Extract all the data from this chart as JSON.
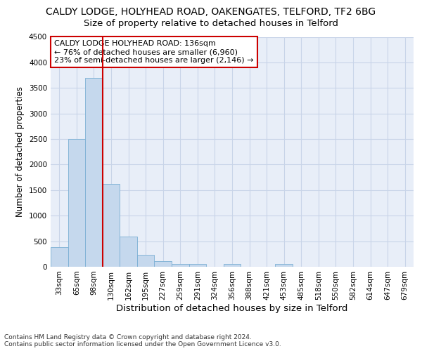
{
  "title1": "CALDY LODGE, HOLYHEAD ROAD, OAKENGATES, TELFORD, TF2 6BG",
  "title2": "Size of property relative to detached houses in Telford",
  "xlabel": "Distribution of detached houses by size in Telford",
  "ylabel": "Number of detached properties",
  "categories": [
    "33sqm",
    "65sqm",
    "98sqm",
    "130sqm",
    "162sqm",
    "195sqm",
    "227sqm",
    "259sqm",
    "291sqm",
    "324sqm",
    "356sqm",
    "388sqm",
    "421sqm",
    "453sqm",
    "485sqm",
    "518sqm",
    "550sqm",
    "582sqm",
    "614sqm",
    "647sqm",
    "679sqm"
  ],
  "values": [
    380,
    2500,
    3700,
    1625,
    590,
    240,
    105,
    60,
    55,
    0,
    60,
    0,
    0,
    55,
    0,
    0,
    0,
    0,
    0,
    0,
    0
  ],
  "bar_color": "#c5d8ed",
  "bar_edge_color": "#7aafd4",
  "grid_color": "#c8d4e8",
  "bg_color": "#e8eef8",
  "vline_color": "#cc0000",
  "vline_pos": 2.5,
  "annotation_line1": "CALDY LODGE HOLYHEAD ROAD: 136sqm",
  "annotation_line2": "← 76% of detached houses are smaller (6,960)",
  "annotation_line3": "23% of semi-detached houses are larger (2,146) →",
  "annotation_box_color": "#cc0000",
  "footnote1": "Contains HM Land Registry data © Crown copyright and database right 2024.",
  "footnote2": "Contains public sector information licensed under the Open Government Licence v3.0.",
  "ylim": [
    0,
    4500
  ],
  "title1_fontsize": 10,
  "title2_fontsize": 9.5,
  "xlabel_fontsize": 9.5,
  "ylabel_fontsize": 8.5,
  "tick_fontsize": 7.5,
  "annot_fontsize": 8,
  "footnote_fontsize": 6.5
}
